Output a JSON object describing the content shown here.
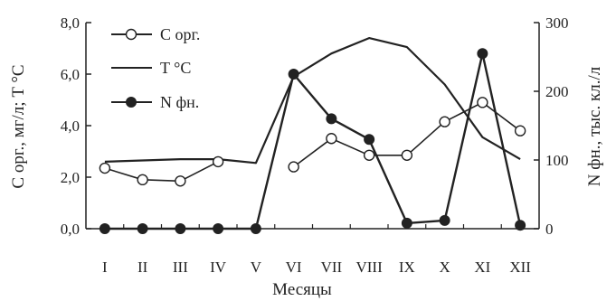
{
  "chart_data": {
    "type": "line",
    "categories": [
      "I",
      "II",
      "III",
      "IV",
      "V",
      "VI",
      "VII",
      "VIII",
      "IX",
      "X",
      "XI",
      "XII"
    ],
    "xlabel": "Месяцы",
    "ylabel_left": "C орг., мг/л; T °C",
    "ylabel_right": "N фн., тыс. кл./л",
    "ylim_left": [
      0,
      8
    ],
    "ylim_right": [
      0,
      300
    ],
    "yticks_left": [
      "0,0",
      "2,0",
      "4,0",
      "6,0",
      "8,0"
    ],
    "yticks_right": [
      "0",
      "100",
      "200",
      "300"
    ],
    "grid": false,
    "legend": "top-left",
    "series": [
      {
        "name": "C орг.",
        "axis": "left",
        "marker": "open-circle",
        "values": [
          2.35,
          1.9,
          1.85,
          2.6,
          null,
          2.4,
          3.5,
          2.85,
          2.85,
          4.15,
          4.9,
          3.8
        ]
      },
      {
        "name": "T °C",
        "axis": "left",
        "marker": "none",
        "values": [
          2.6,
          2.65,
          2.7,
          2.7,
          2.55,
          5.9,
          6.8,
          7.4,
          7.05,
          5.6,
          3.55,
          2.7
        ]
      },
      {
        "name": "N фн.",
        "axis": "right",
        "marker": "filled-circle",
        "values": [
          0,
          0,
          0,
          0,
          0,
          225,
          160,
          130,
          8,
          12,
          255,
          5
        ]
      }
    ]
  }
}
